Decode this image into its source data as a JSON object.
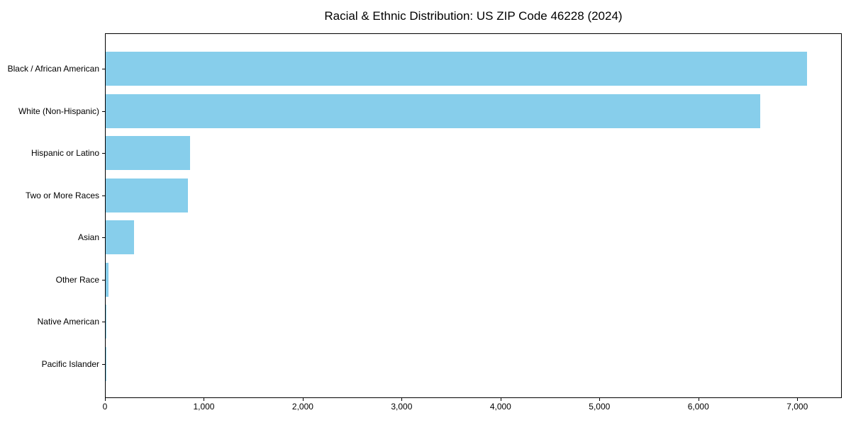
{
  "chart_data": {
    "type": "bar",
    "orientation": "horizontal",
    "title": "Racial & Ethnic Distribution: US ZIP Code 46228 (2024)",
    "categories": [
      "Black / African American",
      "White (Non-Hispanic)",
      "Hispanic or Latino",
      "Two or More Races",
      "Asian",
      "Other Race",
      "Native American",
      "Pacific Islander"
    ],
    "values": [
      7090,
      6620,
      855,
      835,
      285,
      30,
      8,
      2
    ],
    "xlabel": "",
    "ylabel": "",
    "xlim": [
      0,
      7450
    ],
    "xticks": [
      0,
      1000,
      2000,
      3000,
      4000,
      5000,
      6000,
      7000
    ],
    "xtick_labels": [
      "0",
      "1,000",
      "2,000",
      "3,000",
      "4,000",
      "5,000",
      "6,000",
      "7,000"
    ],
    "bar_color": "#87CEEB",
    "axis_color": "#000000",
    "background_color": "#ffffff",
    "grid": false,
    "legend": null
  }
}
